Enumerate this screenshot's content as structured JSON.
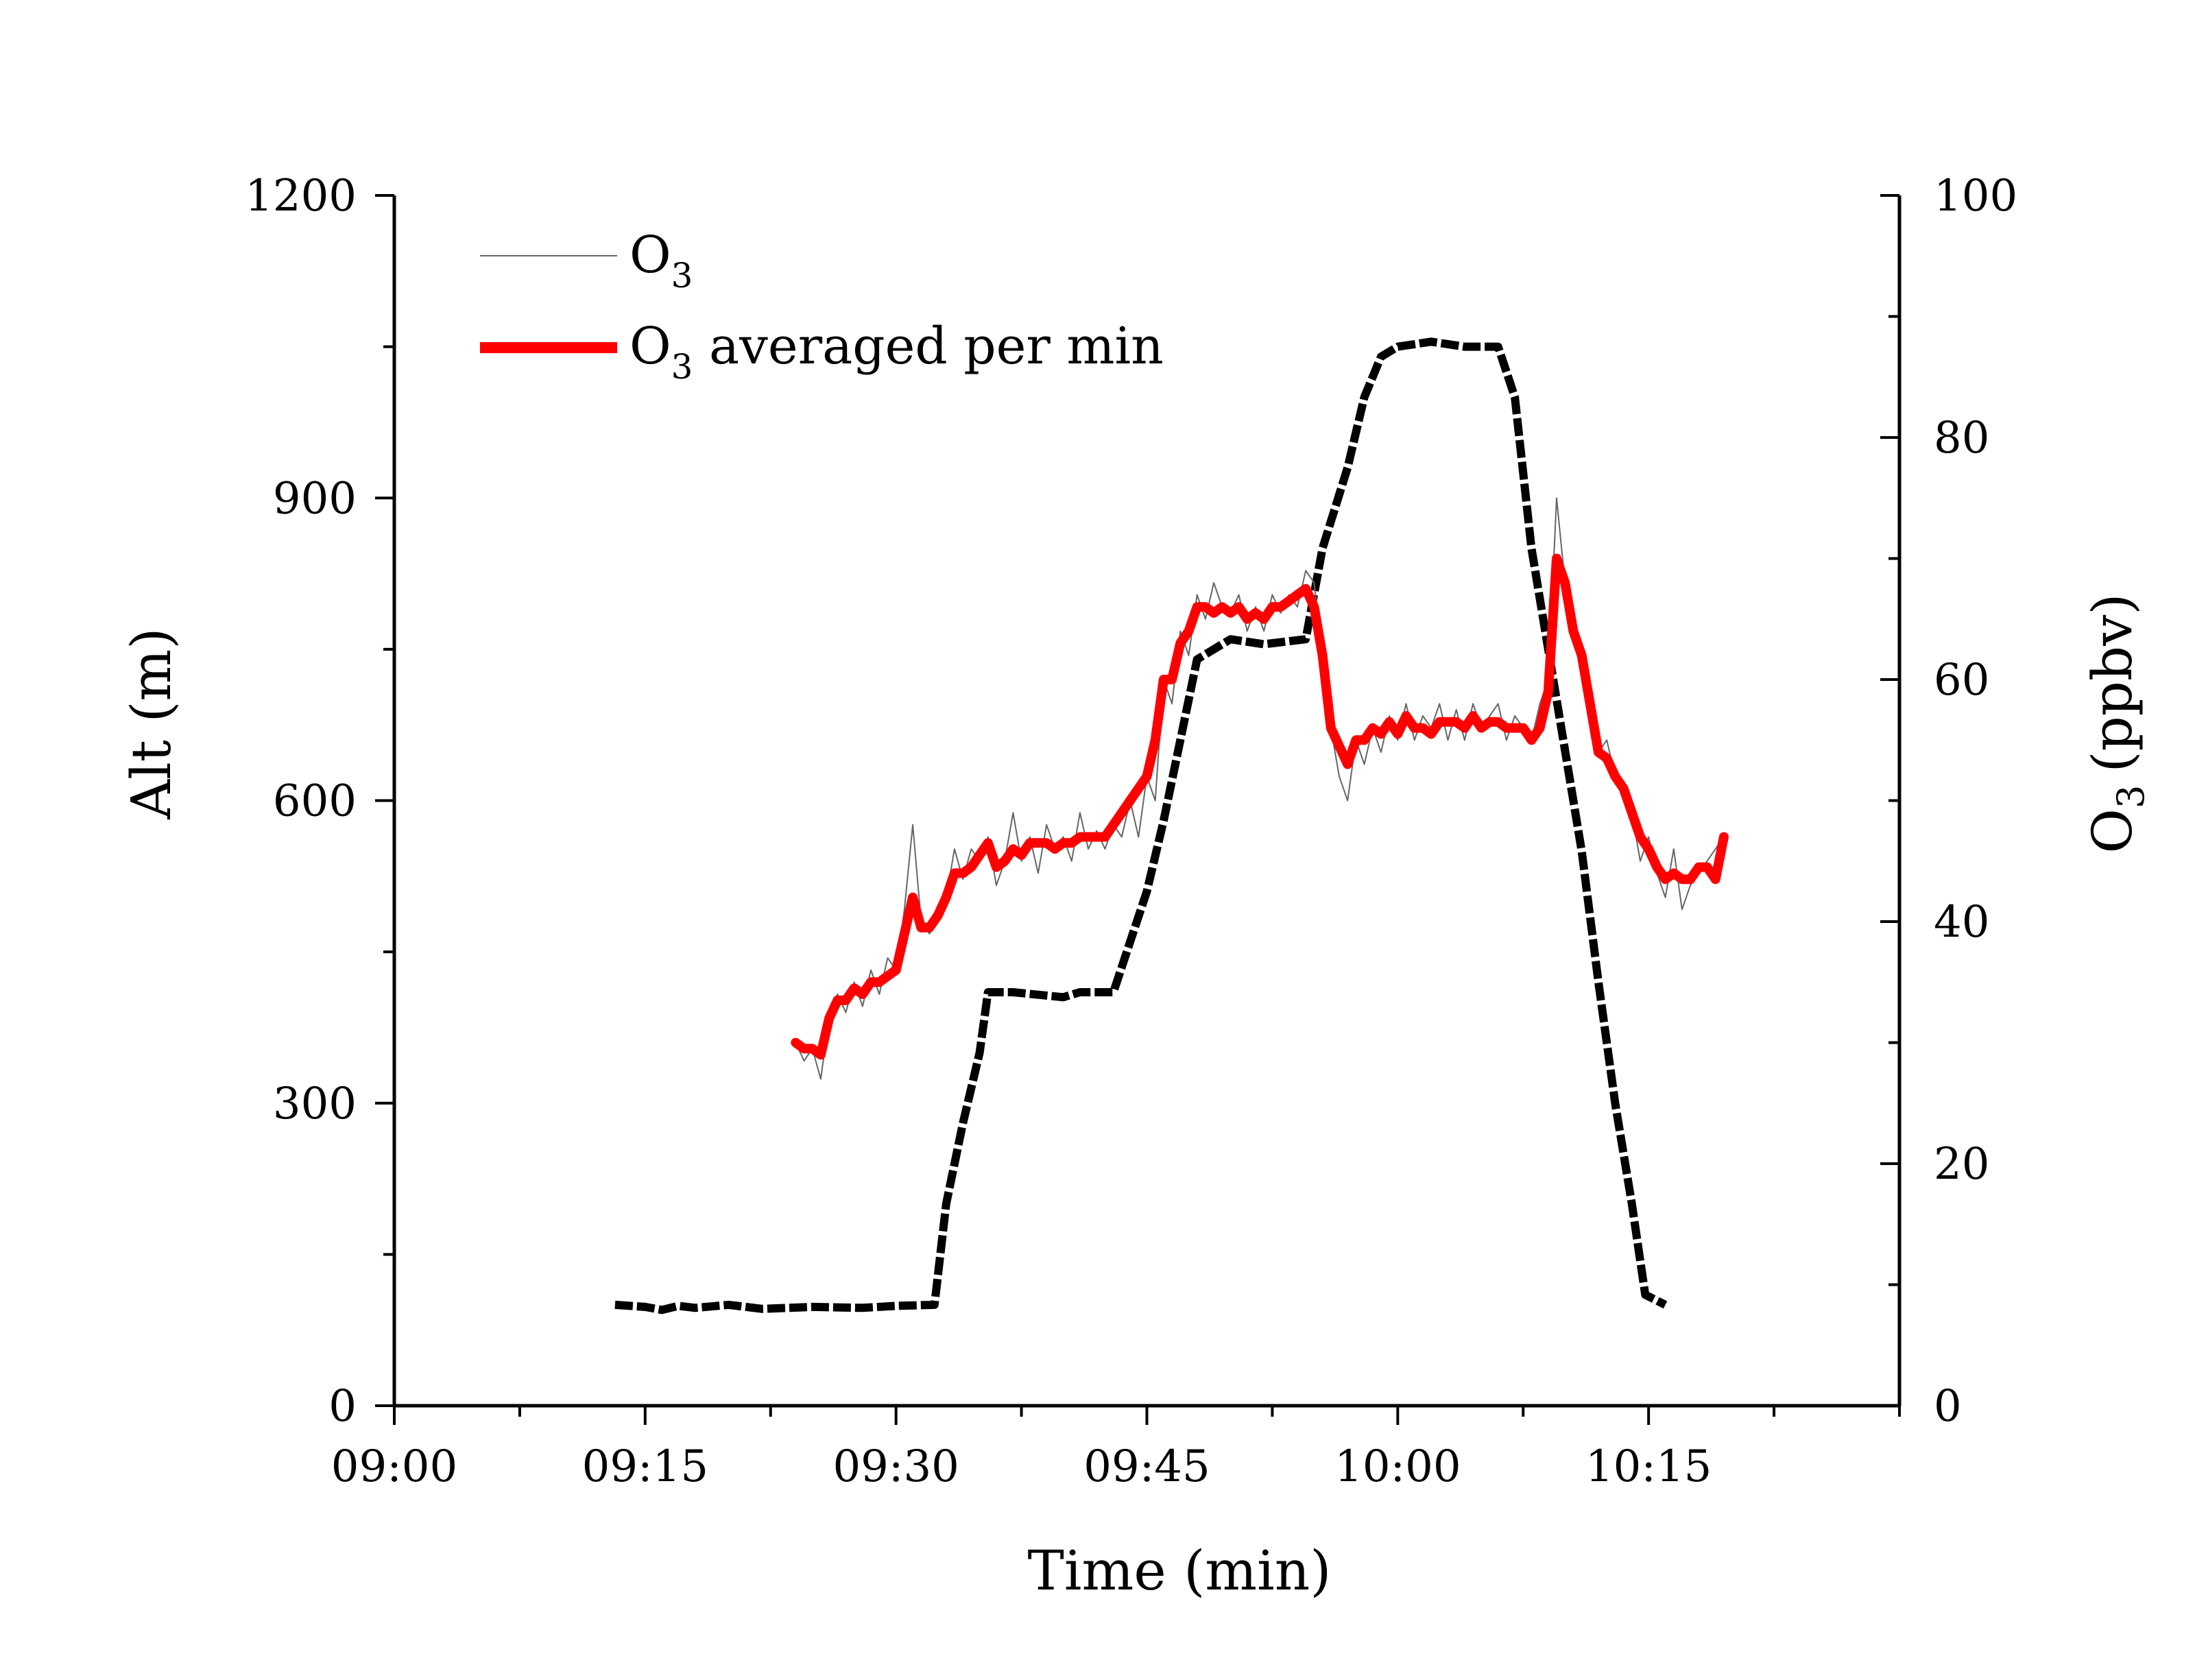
{
  "chart_data": {
    "type": "line",
    "xlabel": "Time (min)",
    "ylabel_left": "Alt (m)",
    "ylabel_right_main": "O",
    "ylabel_right_sub": "3",
    "ylabel_right_unit": "(ppbv)",
    "x_range_min": [
      0,
      90
    ],
    "x_ticks_min": [
      0,
      15,
      30,
      45,
      60,
      75
    ],
    "x_tick_labels": [
      "09:00",
      "09:15",
      "09:30",
      "09:45",
      "10:00",
      "10:15"
    ],
    "y_left_range": [
      0,
      1200
    ],
    "y_left_ticks": [
      0,
      300,
      600,
      900,
      1200
    ],
    "y_left_tick_labels": [
      "0",
      "300",
      "600",
      "900",
      "1200"
    ],
    "y_right_range": [
      0,
      100
    ],
    "y_right_ticks": [
      0,
      20,
      40,
      60,
      80,
      100
    ],
    "y_right_tick_labels": [
      "0",
      "20",
      "40",
      "60",
      "80",
      "100"
    ],
    "legend_position": "top-left",
    "series": [
      {
        "name": "Altitude",
        "axis": "left",
        "color": "#000000",
        "x": [
          13.2,
          15,
          16,
          17,
          18,
          20,
          22,
          25,
          28,
          30,
          32.3,
          33,
          34,
          35,
          35.5,
          37,
          40,
          41,
          43,
          44,
          45,
          46,
          47,
          48,
          50,
          52,
          54.5,
          55.5,
          57,
          58,
          59,
          60,
          62,
          64,
          66,
          67,
          68,
          69.5,
          71,
          72,
          73,
          74,
          74.8,
          76
        ],
        "values": [
          100,
          98,
          95,
          99,
          97,
          100,
          96,
          98,
          97,
          99,
          100,
          200,
          280,
          350,
          410,
          410,
          405,
          410,
          410,
          460,
          510,
          580,
          660,
          740,
          760,
          755,
          760,
          850,
          930,
          1000,
          1040,
          1050,
          1055,
          1050,
          1050,
          1000,
          850,
          700,
          550,
          420,
          300,
          200,
          110,
          100
        ]
      },
      {
        "name": "O3",
        "legend_main": "O",
        "legend_sub": "3",
        "axis": "right",
        "color": "#666666",
        "x": [
          24,
          24.5,
          25,
          25.5,
          26,
          26.5,
          27,
          27.5,
          28,
          28.5,
          29,
          29.5,
          30,
          30.5,
          31,
          31.5,
          32,
          32.5,
          33,
          33.5,
          34,
          34.5,
          35,
          35.5,
          36,
          36.5,
          37,
          37.5,
          38,
          38.5,
          39,
          39.5,
          40,
          40.5,
          41,
          41.5,
          42,
          42.5,
          43,
          43.5,
          44,
          44.5,
          45,
          45.5,
          46,
          46.5,
          47,
          47.5,
          48,
          48.5,
          49,
          49.5,
          50,
          50.5,
          51,
          51.5,
          52,
          52.5,
          53,
          53.5,
          54,
          54.5,
          55,
          55.5,
          56,
          56.5,
          57,
          57.5,
          58,
          58.5,
          59,
          59.5,
          60,
          60.5,
          61,
          61.5,
          62,
          62.5,
          63,
          63.5,
          64,
          64.5,
          65,
          65.5,
          66,
          66.5,
          67,
          67.5,
          68,
          68.5,
          69,
          69.5,
          70,
          70.5,
          71,
          71.5,
          72,
          72.5,
          73,
          73.5,
          74,
          74.5,
          75,
          75.5,
          76,
          76.5,
          77,
          77.5,
          78,
          78.5,
          79,
          79.5
        ],
        "values": [
          30,
          28.5,
          29.5,
          27,
          32,
          34,
          32.5,
          35,
          33,
          36,
          34,
          37,
          36,
          41,
          48,
          40,
          39,
          40,
          42,
          46,
          43.5,
          46,
          45,
          47,
          43,
          45,
          49,
          45,
          47,
          44,
          48,
          46,
          47,
          45,
          49,
          46,
          47.5,
          46,
          48,
          47,
          50,
          47,
          52,
          50,
          60,
          58,
          64,
          62,
          67,
          65,
          68,
          66,
          65.5,
          67,
          64,
          66,
          64,
          67,
          65.5,
          67,
          66,
          69,
          68,
          62,
          56,
          52,
          50,
          55,
          53,
          56,
          54,
          57,
          55,
          58,
          55,
          57,
          56,
          58,
          55,
          57.5,
          55,
          58,
          56,
          57,
          58,
          55,
          57,
          56,
          55,
          58,
          60,
          75,
          68,
          65,
          62,
          58,
          54,
          55,
          52,
          51,
          49,
          45,
          47,
          44,
          42,
          46,
          41,
          43,
          44,
          45,
          46,
          47
        ]
      },
      {
        "name": "O3 averaged per min",
        "legend_main": "O",
        "legend_sub": "3",
        "legend_rest": " averaged per min",
        "axis": "right",
        "color": "#ff0000",
        "x": [
          24,
          24.5,
          25,
          25.5,
          26,
          26.5,
          27,
          27.5,
          28,
          28.5,
          29,
          29.5,
          30,
          30.5,
          31,
          31.5,
          32,
          32.5,
          33,
          33.5,
          34,
          34.5,
          35,
          35.5,
          36,
          36.5,
          37,
          37.5,
          38,
          38.5,
          39,
          39.5,
          40,
          40.5,
          41,
          41.5,
          42,
          42.5,
          43,
          43.5,
          44,
          44.5,
          45,
          45.5,
          46,
          46.5,
          47,
          47.5,
          48,
          48.5,
          49,
          49.5,
          50,
          50.5,
          51,
          51.5,
          52,
          52.5,
          53,
          53.5,
          54,
          54.5,
          55,
          55.5,
          56,
          56.5,
          57,
          57.5,
          58,
          58.5,
          59,
          59.5,
          60,
          60.5,
          61,
          61.5,
          62,
          62.5,
          63,
          63.5,
          64,
          64.5,
          65,
          65.5,
          66,
          66.5,
          67,
          67.5,
          68,
          68.5,
          69,
          69.5,
          70,
          70.5,
          71,
          71.5,
          72,
          72.5,
          73,
          73.5,
          74,
          74.5,
          75,
          75.5,
          76,
          76.5,
          77,
          77.5,
          78,
          78.5,
          79,
          79.5
        ],
        "values": [
          30,
          29.5,
          29.5,
          29,
          32,
          33.5,
          33.5,
          34.5,
          34,
          35,
          35,
          35.5,
          36,
          39,
          42,
          39.5,
          39.5,
          40.5,
          42,
          44,
          44,
          44.5,
          45.5,
          46.5,
          44.5,
          45,
          46,
          45.5,
          46.5,
          46.5,
          46.5,
          46,
          46.5,
          46.5,
          47,
          47,
          47,
          47,
          48,
          49,
          50,
          51,
          52,
          55,
          60,
          60,
          63,
          64,
          66,
          66,
          65.5,
          66,
          65.5,
          66,
          65,
          65.5,
          65,
          66,
          66,
          66.5,
          67,
          67.5,
          66,
          62,
          56,
          54.5,
          53,
          55,
          55,
          56,
          55.5,
          56.5,
          55.5,
          57,
          56,
          56,
          55.5,
          56.5,
          56.5,
          56.5,
          56,
          57,
          56,
          56.5,
          56.5,
          56,
          56,
          56,
          55,
          56,
          59,
          70,
          68,
          64,
          62,
          58,
          54,
          53.5,
          52,
          51,
          49,
          47,
          46,
          44.5,
          43.5,
          44,
          43.5,
          43.5,
          44.5,
          44.5,
          43.5,
          47
        ]
      }
    ]
  }
}
